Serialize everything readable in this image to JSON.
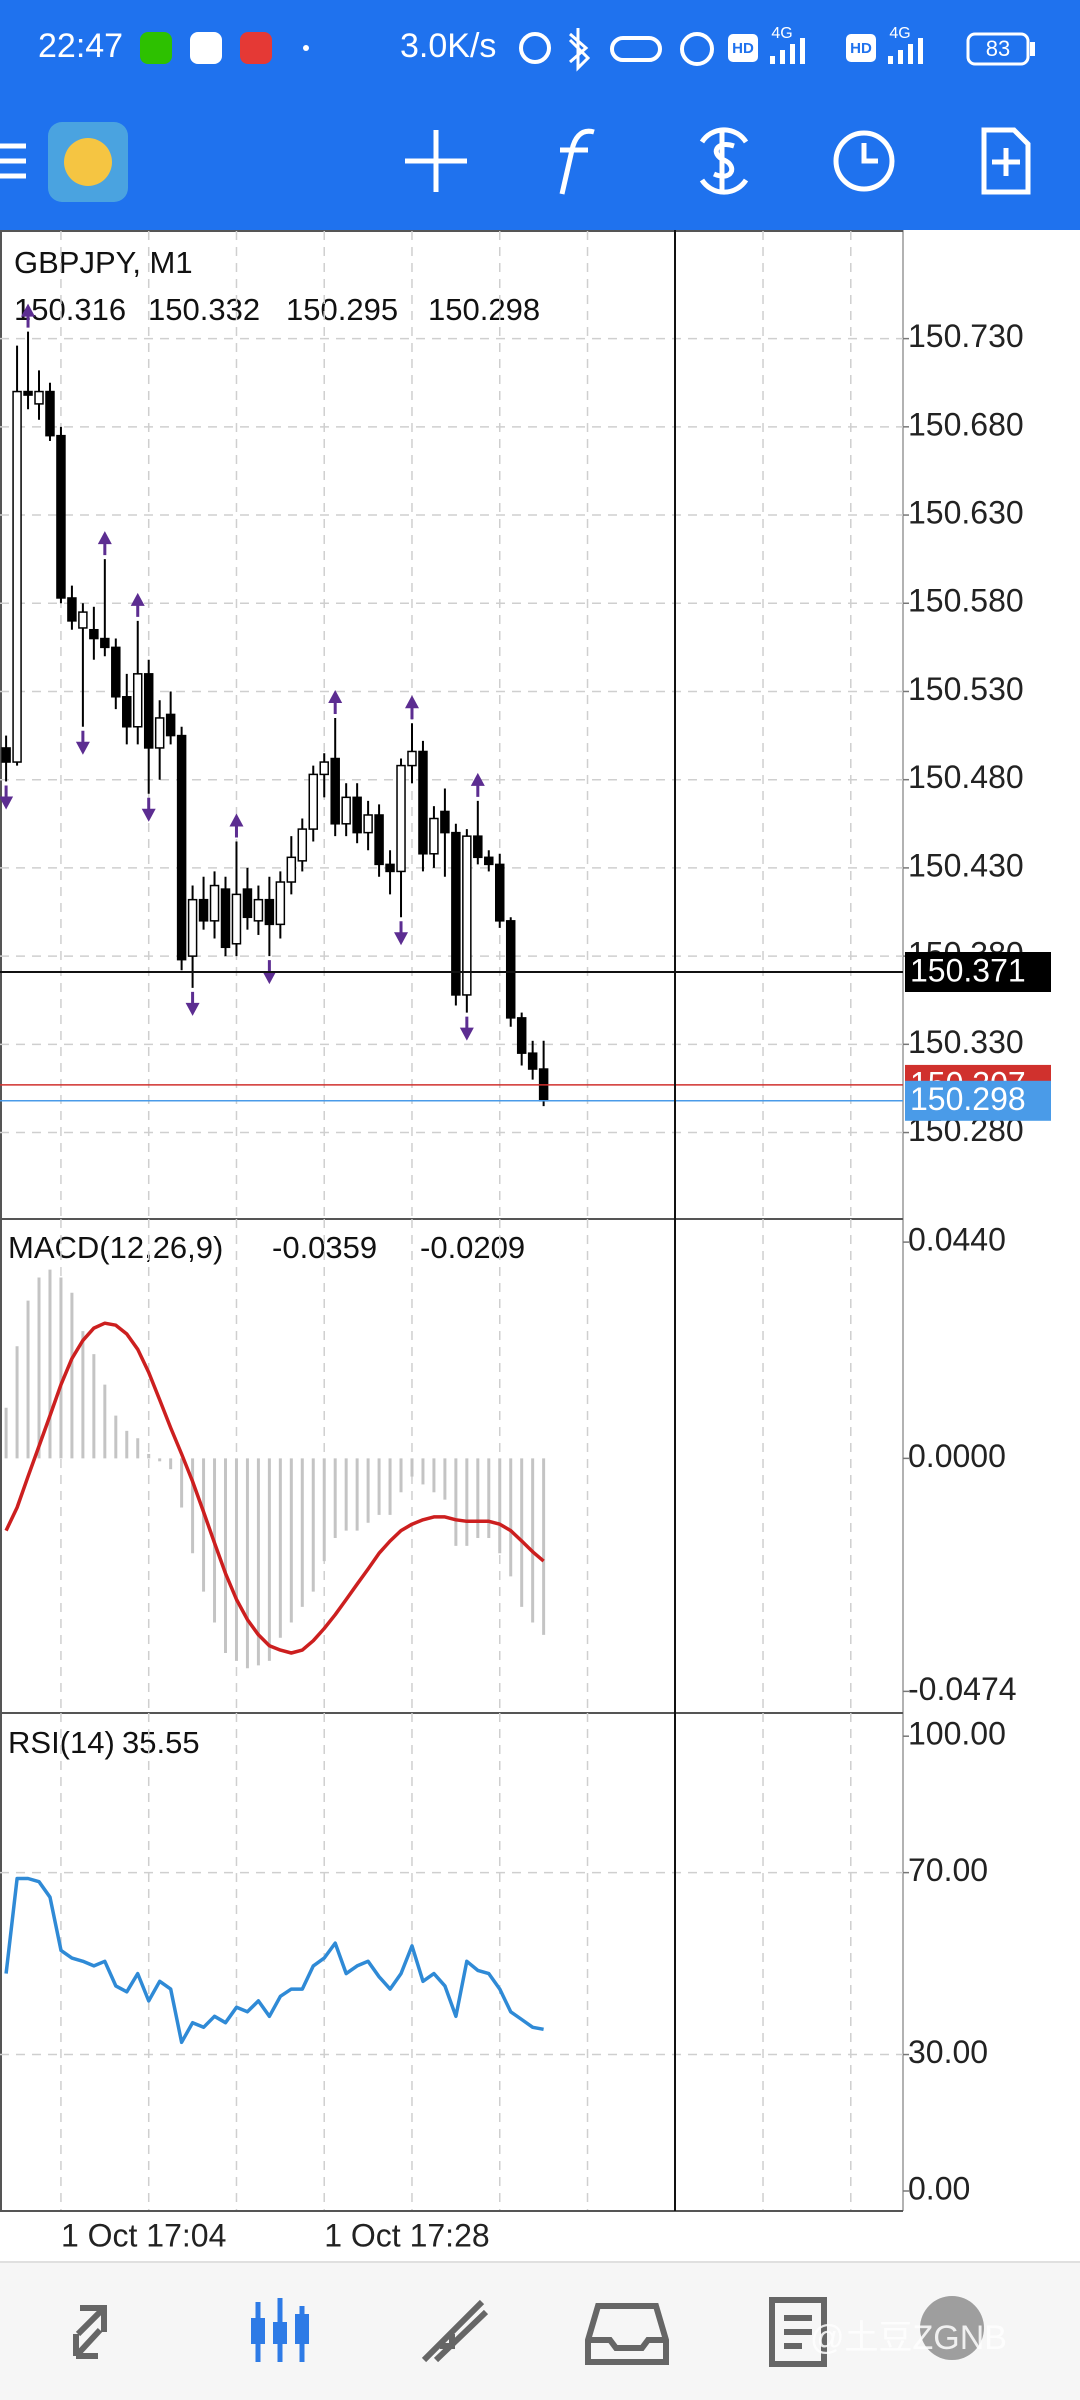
{
  "status_bar": {
    "time": "22:47",
    "speed": "3.0K/s",
    "battery": "83",
    "signal_labels": [
      "HD",
      "4G",
      "HD",
      "4G"
    ]
  },
  "watermark": "@土豆ZGNB",
  "chart_data": [
    {
      "type": "candlestick",
      "title": "GBPJPY, M1",
      "categories": [
        null,
        null,
        null,
        null,
        null,
        "1 Oct 17:04",
        null,
        null,
        null,
        null,
        null,
        null,
        null,
        null,
        null,
        null,
        null,
        null,
        null,
        null,
        null,
        null,
        null,
        null,
        null,
        null,
        null,
        null,
        null,
        "1 Oct 17:28",
        null,
        null,
        null,
        null,
        null,
        null,
        null,
        null,
        null,
        null,
        null,
        null,
        null,
        null,
        null,
        null,
        null,
        null,
        null,
        null
      ],
      "open": [
        150.498,
        150.49,
        150.7,
        150.693,
        150.7,
        150.675,
        150.583,
        150.566,
        150.565,
        150.56,
        150.555,
        150.527,
        150.51,
        150.54,
        150.498,
        150.517,
        150.505,
        150.38,
        150.412,
        150.4,
        150.418,
        150.387,
        150.418,
        150.4,
        150.412,
        150.398,
        150.422,
        150.434,
        150.452,
        150.483,
        150.492,
        150.455,
        150.47,
        150.45,
        150.46,
        150.432,
        150.428,
        150.488,
        150.496,
        150.438,
        150.462,
        150.45,
        150.358,
        150.448,
        150.436,
        150.432,
        150.4,
        150.345,
        150.325,
        150.316
      ],
      "high": [
        150.505,
        150.726,
        150.734,
        150.712,
        150.705,
        150.68,
        150.59,
        150.58,
        150.578,
        150.605,
        150.56,
        150.54,
        150.57,
        150.548,
        150.525,
        150.53,
        150.51,
        150.42,
        150.425,
        150.428,
        150.425,
        150.445,
        150.43,
        150.42,
        150.425,
        150.428,
        150.448,
        150.458,
        150.488,
        150.495,
        150.515,
        150.478,
        150.478,
        150.468,
        150.466,
        150.44,
        150.492,
        150.512,
        150.502,
        150.465,
        150.475,
        150.455,
        150.452,
        150.468,
        150.44,
        150.438,
        150.402,
        150.348,
        150.332,
        150.332
      ],
      "low": [
        150.479,
        150.488,
        150.69,
        150.684,
        150.672,
        150.58,
        150.565,
        150.51,
        150.548,
        150.55,
        150.52,
        150.5,
        150.5,
        150.472,
        150.48,
        150.5,
        150.372,
        150.362,
        150.395,
        150.39,
        150.38,
        150.38,
        150.395,
        150.392,
        150.38,
        150.39,
        150.415,
        150.428,
        150.445,
        150.47,
        150.448,
        150.448,
        150.444,
        150.44,
        150.425,
        150.415,
        150.402,
        150.478,
        150.428,
        150.43,
        150.425,
        150.352,
        150.348,
        150.432,
        150.428,
        150.396,
        150.34,
        150.318,
        150.31,
        150.295
      ],
      "close": [
        150.49,
        150.7,
        150.698,
        150.7,
        150.675,
        150.583,
        150.57,
        150.575,
        150.56,
        150.555,
        150.527,
        150.51,
        150.54,
        150.498,
        150.515,
        150.505,
        150.378,
        150.412,
        150.4,
        150.42,
        150.385,
        150.415,
        150.402,
        150.412,
        150.398,
        150.422,
        150.436,
        150.452,
        150.483,
        150.49,
        150.455,
        150.47,
        150.45,
        150.46,
        150.432,
        150.428,
        150.488,
        150.496,
        150.438,
        150.458,
        150.45,
        150.358,
        150.448,
        150.436,
        150.432,
        150.4,
        150.345,
        150.325,
        150.316,
        150.298
      ],
      "fractals_up": [
        null,
        null,
        150.734,
        null,
        null,
        null,
        null,
        null,
        null,
        150.605,
        null,
        null,
        150.57,
        null,
        null,
        null,
        null,
        null,
        null,
        null,
        null,
        150.445,
        null,
        null,
        null,
        null,
        null,
        null,
        null,
        null,
        150.515,
        null,
        null,
        null,
        null,
        null,
        null,
        150.512,
        null,
        null,
        null,
        null,
        null,
        150.468,
        null,
        null,
        null,
        null,
        null,
        null
      ],
      "fractals_down": [
        150.479,
        null,
        null,
        null,
        null,
        null,
        null,
        150.51,
        null,
        null,
        null,
        null,
        null,
        150.472,
        null,
        null,
        null,
        150.362,
        null,
        null,
        null,
        null,
        null,
        null,
        150.38,
        null,
        null,
        null,
        null,
        null,
        null,
        null,
        null,
        null,
        null,
        null,
        150.402,
        null,
        null,
        null,
        null,
        null,
        150.348,
        null,
        null,
        null,
        null,
        null,
        null,
        null
      ],
      "up_color": "#ffffff",
      "down_color": "#000000",
      "fractal_color": "#5c2d91",
      "crosshair_price": 150.371,
      "ask": 150.307,
      "ask_color": "#d0312d",
      "bid": 150.298,
      "bid_color": "#4a9be8",
      "ylim": [
        150.231,
        150.791
      ],
      "yticks": [
        {
          "value": 150.28,
          "label": "150.280"
        },
        {
          "value": 150.33,
          "label": "150.330"
        },
        {
          "value": 150.38,
          "label": "150.380"
        },
        {
          "value": 150.43,
          "label": "150.430"
        },
        {
          "value": 150.48,
          "label": "150.480"
        },
        {
          "value": 150.53,
          "label": "150.530"
        },
        {
          "value": 150.58,
          "label": "150.580"
        },
        {
          "value": 150.63,
          "label": "150.630"
        },
        {
          "value": 150.68,
          "label": "150.680"
        },
        {
          "value": 150.73,
          "label": "150.730"
        }
      ],
      "grid": true
    },
    {
      "type": "macd",
      "title": "MACD(12,26,9)",
      "series": [
        {
          "color": "#c4c4c4",
          "values": [
            0.0103,
            0.0228,
            0.0321,
            0.0368,
            0.0384,
            0.0368,
            0.0337,
            0.0259,
            0.0212,
            0.015,
            0.0087,
            0.0056,
            0.0041,
            0.0009,
            -0.0006,
            -0.0022,
            -0.01,
            -0.0193,
            -0.0271,
            -0.0334,
            -0.0396,
            -0.0412,
            -0.0427,
            -0.0421,
            -0.0412,
            -0.0365,
            -0.0334,
            -0.0302,
            -0.0271,
            -0.0209,
            -0.0162,
            -0.0147,
            -0.0147,
            -0.0131,
            -0.0115,
            -0.0115,
            -0.0069,
            -0.0037,
            -0.0053,
            -0.0069,
            -0.0084,
            -0.0178,
            -0.0178,
            -0.0162,
            -0.0162,
            -0.0193,
            -0.024,
            -0.0302,
            -0.0334,
            -0.0359
          ]
        },
        {
          "color": "#cc1f1f",
          "values": [
            -0.0147,
            -0.01,
            -0.0037,
            0.0025,
            0.0087,
            0.015,
            0.0203,
            0.024,
            0.0265,
            0.0275,
            0.0271,
            0.0253,
            0.0222,
            0.0175,
            0.0119,
            0.0062,
            0.0009,
            -0.0047,
            -0.0109,
            -0.0172,
            -0.0234,
            -0.0287,
            -0.0328,
            -0.0359,
            -0.0381,
            -0.039,
            -0.0396,
            -0.039,
            -0.0371,
            -0.0346,
            -0.0318,
            -0.0287,
            -0.0256,
            -0.0225,
            -0.0193,
            -0.0168,
            -0.0147,
            -0.0134,
            -0.0125,
            -0.0119,
            -0.0119,
            -0.0125,
            -0.0128,
            -0.0128,
            -0.0128,
            -0.0134,
            -0.0147,
            -0.0168,
            -0.019,
            -0.0209
          ]
        }
      ],
      "ylim": [
        -0.0518,
        0.0487
      ],
      "yticks": [
        -0.0474,
        {
          "value": 0,
          "label": "0.0000"
        },
        {
          "value": 0.044,
          "label": "0.0440"
        }
      ]
    },
    {
      "type": "line",
      "title": "RSI(14)",
      "color": "#2f8ad6",
      "values": [
        47.8,
        68.7,
        68.7,
        68,
        64.6,
        52.9,
        51.2,
        50.5,
        49.5,
        50.5,
        45.1,
        43.8,
        47.8,
        41.8,
        46.1,
        44.4,
        32.7,
        37,
        36,
        38.4,
        37,
        40.4,
        39.4,
        41.8,
        38.4,
        42.8,
        44.4,
        44.4,
        49.5,
        51.2,
        54.5,
        47.8,
        49.5,
        50.5,
        47.1,
        44.4,
        47.8,
        53.9,
        46.1,
        47.8,
        45.1,
        38.4,
        50.5,
        48.5,
        47.8,
        44.4,
        39.4,
        37.7,
        36,
        35.55
      ],
      "levels": [
        70,
        30
      ],
      "ylim": [
        -4.4,
        105.1
      ],
      "yticks": [
        {
          "value": 0,
          "label": "0.00"
        },
        {
          "value": 30,
          "label": "30.00"
        },
        {
          "value": 70,
          "label": "70.00"
        },
        {
          "value": 100,
          "label": "100.00"
        }
      ]
    }
  ]
}
